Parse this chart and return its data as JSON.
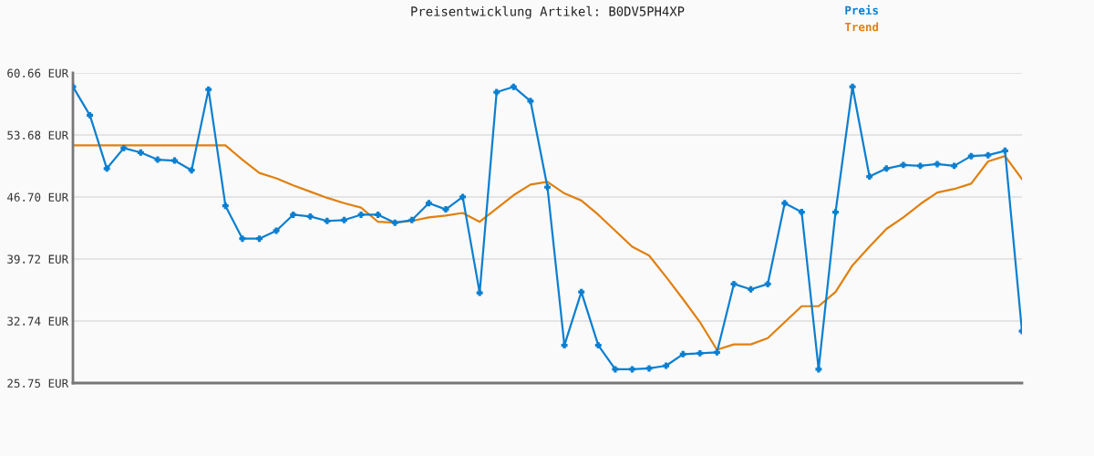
{
  "chart_data": {
    "type": "line",
    "title": "Preisentwicklung Artikel: B0DV5PH4XP",
    "categories": [
      null,
      null,
      null,
      null,
      null,
      null,
      null,
      null,
      null,
      null,
      null,
      null,
      null,
      null,
      null,
      null,
      null,
      null,
      null,
      null,
      null,
      null,
      null,
      null,
      null,
      null,
      null,
      null,
      null,
      null,
      null,
      null,
      null,
      null,
      null,
      null,
      null,
      null,
      null,
      null,
      null,
      null,
      null,
      null,
      null,
      null,
      null,
      null,
      null,
      null,
      null,
      null,
      null,
      null,
      null,
      null,
      null
    ],
    "series": [
      {
        "name": "Preis",
        "color": "#0b7fd0",
        "marker": "cross",
        "values": [
          59.1,
          55.9,
          49.9,
          52.2,
          51.7,
          50.9,
          50.8,
          49.7,
          58.8,
          45.7,
          42.0,
          42.0,
          42.9,
          44.7,
          44.5,
          44.0,
          44.1,
          44.7,
          44.7,
          43.8,
          44.1,
          46.0,
          45.3,
          46.7,
          35.9,
          58.5,
          59.1,
          57.5,
          47.8,
          30.0,
          36.0,
          30.0,
          27.3,
          27.3,
          27.4,
          27.7,
          29.0,
          29.1,
          29.2,
          36.9,
          36.3,
          36.9,
          46.0,
          45.0,
          27.3,
          45.0,
          59.1,
          49.0,
          49.9,
          50.3,
          50.2,
          50.4,
          50.2,
          51.3,
          51.4,
          51.9,
          31.6
        ]
      },
      {
        "name": "Trend",
        "color": "#e08010",
        "marker": "none",
        "values": [
          52.5,
          52.5,
          52.5,
          52.5,
          52.5,
          52.5,
          52.5,
          52.5,
          52.5,
          52.5,
          50.9,
          49.4,
          48.8,
          48.0,
          47.3,
          46.6,
          46.0,
          45.5,
          43.9,
          43.8,
          44.0,
          44.4,
          44.6,
          44.9,
          43.9,
          45.4,
          46.9,
          48.1,
          48.4,
          47.1,
          46.3,
          44.7,
          42.9,
          41.1,
          40.1,
          37.7,
          35.2,
          32.6,
          29.5,
          30.1,
          30.1,
          30.8,
          32.6,
          34.4,
          34.4,
          36.0,
          39.0,
          41.1,
          43.1,
          44.4,
          45.9,
          47.2,
          47.6,
          48.2,
          50.7,
          51.3,
          48.7
        ]
      }
    ],
    "ylim": [
      25.75,
      60.66
    ],
    "yticks": [
      {
        "value": 25.75,
        "label": "25.75 EUR"
      },
      {
        "value": 32.74,
        "label": "32.74 EUR"
      },
      {
        "value": 39.72,
        "label": "39.72 EUR"
      },
      {
        "value": 46.7,
        "label": "46.70 EUR"
      },
      {
        "value": 53.68,
        "label": "53.68 EUR"
      },
      {
        "value": 60.66,
        "label": "60.66 EUR"
      }
    ],
    "grid": "y",
    "legend": "top right",
    "line_style": "solid"
  }
}
